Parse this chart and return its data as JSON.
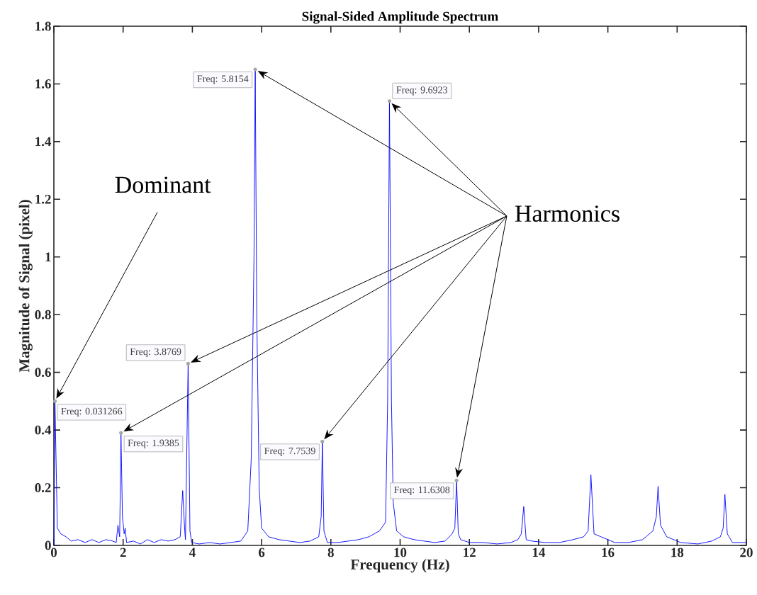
{
  "chart_data": {
    "type": "line",
    "title": "Signal-Sided Amplitude Spectrum",
    "xlabel": "Frequency (Hz)",
    "ylabel": "Magnitude of Signal (pixel)",
    "xlim": [
      0,
      20
    ],
    "ylim": [
      0,
      1.8
    ],
    "xticks": [
      0,
      2,
      4,
      6,
      8,
      10,
      12,
      14,
      16,
      18,
      20
    ],
    "yticks": [
      0,
      0.2,
      0.4,
      0.6,
      0.8,
      1,
      1.2,
      1.4,
      1.6,
      1.8
    ],
    "grid": false,
    "marker": "none",
    "line_style": "solid",
    "series": [
      {
        "color": "#0000ff",
        "x": [
          0,
          0.031,
          0.1,
          0.2,
          0.35,
          0.5,
          0.7,
          0.9,
          1.1,
          1.3,
          1.5,
          1.7,
          1.8,
          1.85,
          1.9,
          1.9385,
          1.98,
          2.03,
          2.06,
          2.1,
          2.3,
          2.5,
          2.7,
          2.9,
          3.1,
          3.3,
          3.5,
          3.65,
          3.72,
          3.78,
          3.8,
          3.8769,
          3.93,
          3.98,
          4.2,
          4.5,
          4.8,
          5.1,
          5.4,
          5.6,
          5.7,
          5.78,
          5.8154,
          5.86,
          5.93,
          6.0,
          6.2,
          6.5,
          6.8,
          7.1,
          7.4,
          7.65,
          7.72,
          7.7539,
          7.8,
          7.9,
          8.2,
          8.5,
          8.8,
          9.1,
          9.4,
          9.58,
          9.64,
          9.6923,
          9.75,
          9.8,
          9.9,
          10.1,
          10.4,
          10.7,
          11.0,
          11.3,
          11.5,
          11.58,
          11.6308,
          11.68,
          11.75,
          12.0,
          12.4,
          12.8,
          13.2,
          13.4,
          13.5,
          13.57,
          13.64,
          13.8,
          14.2,
          14.6,
          15.0,
          15.3,
          15.43,
          15.51,
          15.6,
          15.8,
          16.2,
          16.6,
          17.0,
          17.3,
          17.4,
          17.45,
          17.52,
          17.7,
          18.1,
          18.6,
          19.0,
          19.25,
          19.33,
          19.38,
          19.45,
          19.6,
          20
        ],
        "values": [
          0,
          0.5,
          0.06,
          0.04,
          0.03,
          0.015,
          0.02,
          0.01,
          0.02,
          0.01,
          0.02,
          0.015,
          0.01,
          0.07,
          0.03,
          0.39,
          0.1,
          0.04,
          0.06,
          0.01,
          0.015,
          0.005,
          0.02,
          0.01,
          0.02,
          0.015,
          0.02,
          0.03,
          0.19,
          0.05,
          0.02,
          0.63,
          0.05,
          0.01,
          0.005,
          0.01,
          0.005,
          0.01,
          0.015,
          0.05,
          0.3,
          1.0,
          1.65,
          0.8,
          0.2,
          0.06,
          0.03,
          0.02,
          0.015,
          0.01,
          0.015,
          0.03,
          0.1,
          0.36,
          0.05,
          0.01,
          0.01,
          0.015,
          0.02,
          0.03,
          0.05,
          0.08,
          0.5,
          1.54,
          0.5,
          0.15,
          0.05,
          0.03,
          0.02,
          0.015,
          0.01,
          0.015,
          0.04,
          0.06,
          0.225,
          0.04,
          0.02,
          0.01,
          0.01,
          0.005,
          0.01,
          0.02,
          0.04,
          0.135,
          0.02,
          0.015,
          0.01,
          0.01,
          0.02,
          0.03,
          0.05,
          0.245,
          0.04,
          0.03,
          0.01,
          0.01,
          0.02,
          0.05,
          0.1,
          0.205,
          0.07,
          0.03,
          0.01,
          0.005,
          0.015,
          0.03,
          0.06,
          0.177,
          0.04,
          0.01,
          0.01
        ]
      }
    ],
    "annotations": [
      "Dominant",
      "Harmonics",
      {
        "text": "Freq: 0.031266",
        "x": 0.031,
        "y": 0.5
      },
      {
        "text": "Freq: 1.9385",
        "x": 1.9385,
        "y": 0.39
      },
      {
        "text": "Freq: 3.8769",
        "x": 3.8769,
        "y": 0.63
      },
      {
        "text": "Freq: 5.8154",
        "x": 5.8154,
        "y": 1.65
      },
      {
        "text": "Freq: 7.7539",
        "x": 7.7539,
        "y": 0.36
      },
      {
        "text": "Freq: 9.6923",
        "x": 9.6923,
        "y": 1.54
      },
      {
        "text": "Freq: 11.6308",
        "x": 11.6308,
        "y": 0.225
      }
    ]
  }
}
